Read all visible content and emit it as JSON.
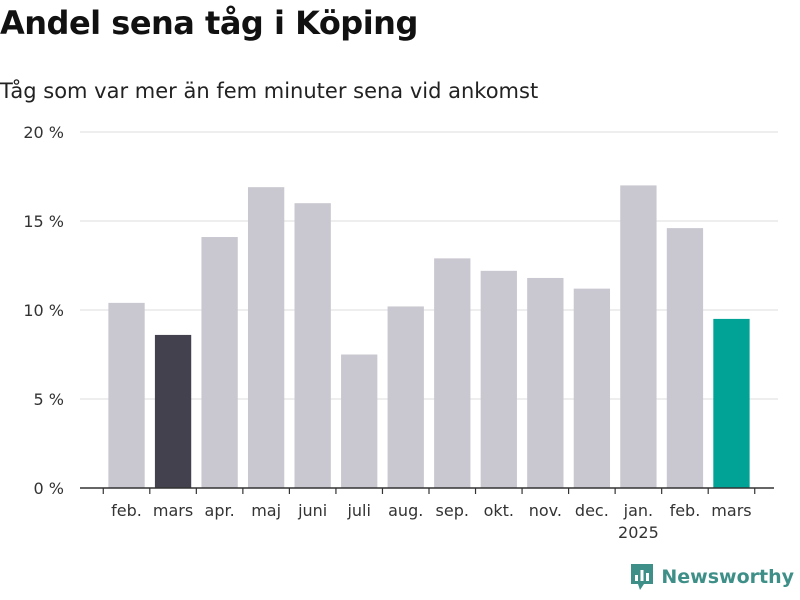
{
  "title": "Andel sena tåg i Köping",
  "subtitle": "Tåg som var mer än fem minuter sena vid ankomst",
  "brand": "Newsworthy",
  "colors": {
    "default_bar": "#c9c7d0",
    "highlight_dark": "#42414d",
    "highlight_current": "#00a396",
    "grid": "#dddddd",
    "axis": "#333333",
    "logo": "#3d8f88"
  },
  "chart_data": {
    "type": "bar",
    "categories": [
      "feb.",
      "mars",
      "apr.",
      "maj",
      "juni",
      "juli",
      "aug.",
      "sep.",
      "okt.",
      "nov.",
      "dec.",
      "jan.",
      "feb.",
      "mars"
    ],
    "year_labels": [
      "",
      "",
      "",
      "",
      "",
      "",
      "",
      "",
      "",
      "",
      "",
      "2025",
      "",
      ""
    ],
    "series": [
      {
        "values": [
          10.4,
          8.6,
          14.1,
          16.9,
          16.0,
          7.5,
          10.2,
          12.9,
          12.2,
          11.8,
          11.2,
          17.0,
          14.6,
          9.5
        ]
      }
    ],
    "highlight": {
      "1": "highlight_dark",
      "13": "highlight_current"
    },
    "yticks": [
      0,
      5,
      10,
      15,
      20
    ],
    "ytick_labels": [
      "0 %",
      "5 %",
      "10 %",
      "15 %",
      "20 %"
    ],
    "ylim": [
      0,
      20
    ],
    "xlabel": "",
    "ylabel": "",
    "grid": true,
    "legend": "none"
  }
}
